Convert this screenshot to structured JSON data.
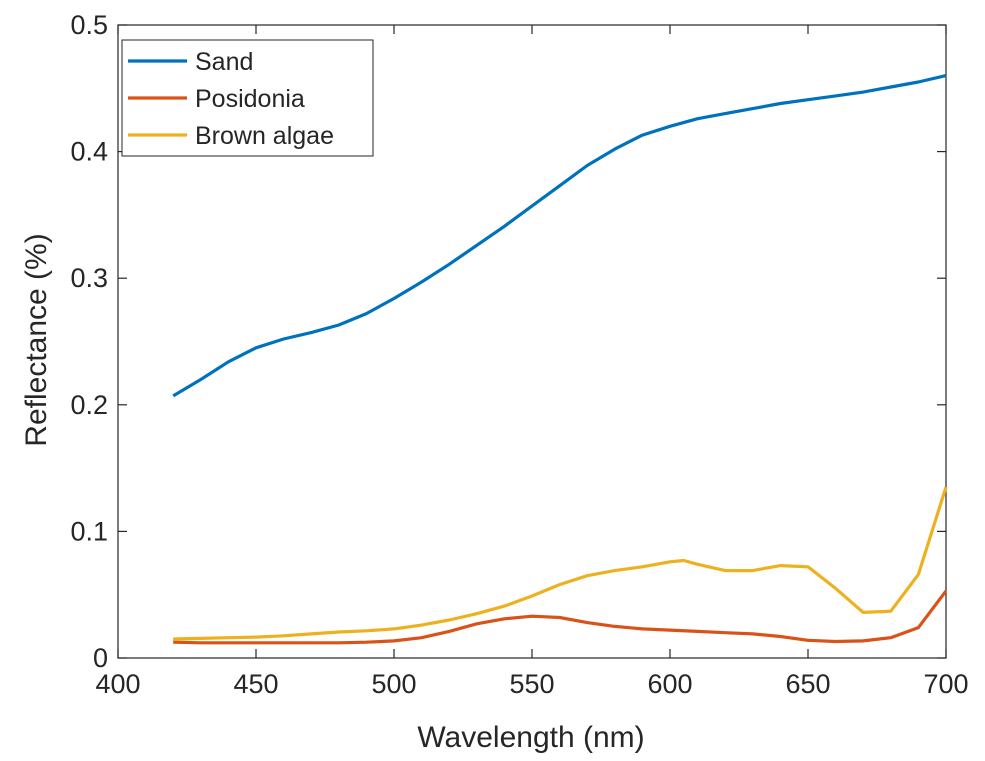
{
  "chart_data": {
    "type": "line",
    "xlabel": "Wavelength (nm)",
    "ylabel": "Reflectance (%)",
    "xlim": [
      400,
      700
    ],
    "ylim": [
      0,
      0.5
    ],
    "xticks": [
      400,
      450,
      500,
      550,
      600,
      650,
      700
    ],
    "xtick_labels": [
      "400",
      "450",
      "500",
      "550",
      "600",
      "650",
      "700"
    ],
    "yticks": [
      0,
      0.1,
      0.2,
      0.3,
      0.4,
      0.5
    ],
    "ytick_labels": [
      "0",
      "0.1",
      "0.2",
      "0.3",
      "0.4",
      "0.5"
    ],
    "grid": false,
    "legend_position": "top-left",
    "series": [
      {
        "name": "Sand",
        "color": "#0072BD",
        "x": [
          420,
          430,
          440,
          450,
          460,
          470,
          480,
          490,
          500,
          510,
          520,
          530,
          540,
          550,
          560,
          570,
          580,
          590,
          600,
          610,
          620,
          630,
          640,
          650,
          660,
          670,
          680,
          690,
          700
        ],
        "y": [
          0.207,
          0.22,
          0.234,
          0.245,
          0.252,
          0.257,
          0.263,
          0.272,
          0.284,
          0.297,
          0.311,
          0.326,
          0.341,
          0.357,
          0.373,
          0.389,
          0.402,
          0.413,
          0.42,
          0.426,
          0.43,
          0.434,
          0.438,
          0.441,
          0.444,
          0.447,
          0.451,
          0.455,
          0.46
        ]
      },
      {
        "name": "Posidonia",
        "color": "#D95319",
        "x": [
          420,
          430,
          440,
          450,
          460,
          470,
          480,
          490,
          500,
          510,
          520,
          530,
          540,
          550,
          560,
          570,
          580,
          590,
          600,
          610,
          620,
          630,
          640,
          650,
          660,
          670,
          680,
          690,
          700
        ],
        "y": [
          0.0125,
          0.012,
          0.012,
          0.012,
          0.012,
          0.012,
          0.012,
          0.0125,
          0.0135,
          0.016,
          0.021,
          0.027,
          0.031,
          0.033,
          0.032,
          0.028,
          0.025,
          0.023,
          0.022,
          0.021,
          0.02,
          0.019,
          0.017,
          0.014,
          0.013,
          0.0135,
          0.016,
          0.024,
          0.053
        ]
      },
      {
        "name": "Brown algae",
        "color": "#EDB120",
        "x": [
          420,
          430,
          440,
          450,
          460,
          470,
          480,
          490,
          500,
          510,
          520,
          530,
          540,
          550,
          560,
          570,
          580,
          590,
          600,
          605,
          610,
          620,
          630,
          640,
          650,
          660,
          670,
          680,
          690,
          700
        ],
        "y": [
          0.015,
          0.0155,
          0.016,
          0.0165,
          0.0175,
          0.019,
          0.0205,
          0.0215,
          0.023,
          0.026,
          0.03,
          0.035,
          0.041,
          0.049,
          0.058,
          0.065,
          0.069,
          0.072,
          0.076,
          0.077,
          0.074,
          0.069,
          0.069,
          0.073,
          0.072,
          0.055,
          0.036,
          0.037,
          0.066,
          0.135
        ]
      }
    ]
  }
}
